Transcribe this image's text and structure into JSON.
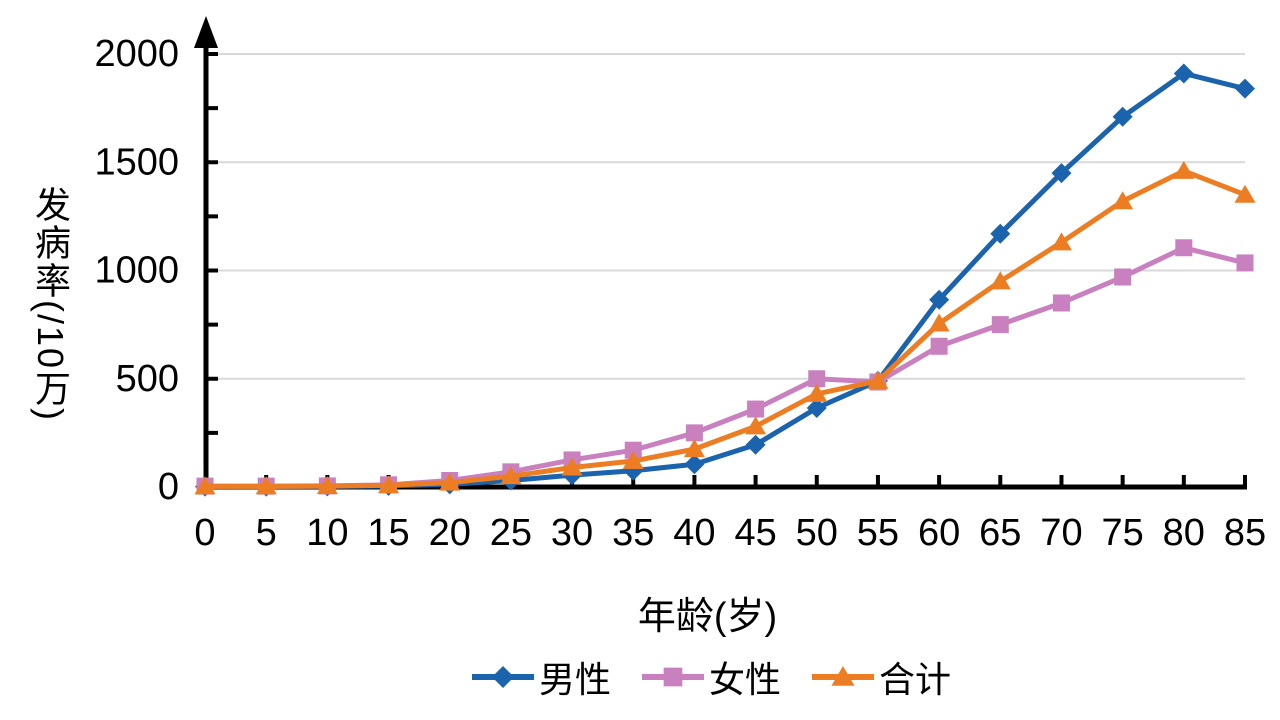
{
  "chart_data": {
    "type": "line",
    "title": "",
    "xlabel": "年龄(岁)",
    "ylabel": "发病率(/10万)",
    "x": [
      0,
      5,
      10,
      15,
      20,
      25,
      30,
      35,
      40,
      45,
      50,
      55,
      60,
      65,
      70,
      75,
      80,
      85
    ],
    "ylim": [
      0,
      2000
    ],
    "y_ticks": [
      0,
      500,
      1000,
      1500,
      2000
    ],
    "y_minor_tick_step": 250,
    "grid": "horizontal gridlines at major y ticks only",
    "legend_position": "bottom center",
    "axes_style": "thick black axes, y-axis ends in upward arrow, inward-pointing ticks",
    "series": [
      {
        "id": "male",
        "name": "男性",
        "marker": "diamond",
        "color": "#1B63AC",
        "values": [
          2,
          2,
          3,
          5,
          12,
          30,
          55,
          75,
          105,
          195,
          365,
          490,
          865,
          1170,
          1450,
          1710,
          1910,
          1840
        ]
      },
      {
        "id": "female",
        "name": "女性",
        "marker": "square",
        "color": "#C980BF",
        "values": [
          4,
          4,
          5,
          10,
          30,
          70,
          125,
          170,
          250,
          360,
          500,
          485,
          650,
          750,
          850,
          970,
          1105,
          1035
        ]
      },
      {
        "id": "total",
        "name": "合计",
        "marker": "triangle",
        "color": "#ED7D23",
        "values": [
          3,
          3,
          4,
          8,
          20,
          50,
          90,
          120,
          175,
          280,
          430,
          490,
          755,
          950,
          1130,
          1320,
          1460,
          1350
        ]
      }
    ]
  },
  "colors": {
    "background": "#FFFFFF",
    "axis": "#000000",
    "text": "#000000",
    "gridline": "#D9D9D9"
  }
}
